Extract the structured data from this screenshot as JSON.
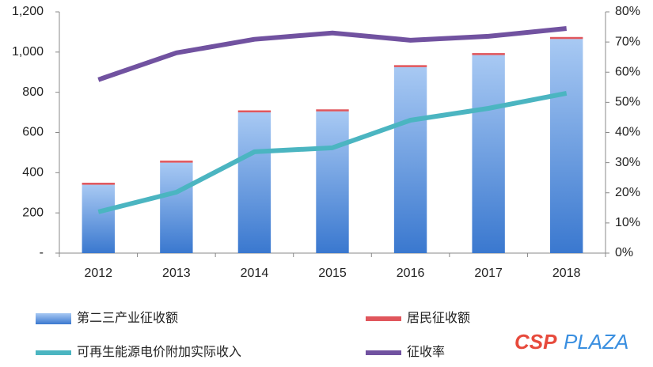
{
  "chart_data": {
    "type": "combo",
    "categories": [
      "2012",
      "2013",
      "2014",
      "2015",
      "2016",
      "2017",
      "2018"
    ],
    "series": [
      {
        "name": "第二三产业征收额",
        "type": "bar",
        "stack": true,
        "color": "#5b93dc",
        "values": [
          340,
          450,
          700,
          705,
          925,
          985,
          1065
        ]
      },
      {
        "name": "居民征收额",
        "type": "bar",
        "stack": true,
        "color": "#e0565c",
        "values": [
          10,
          10,
          10,
          10,
          10,
          10,
          10
        ]
      },
      {
        "name": "可再生能源电价附加实际收入",
        "type": "line",
        "color": "#4bb5c1",
        "values": [
          205,
          303,
          504,
          524,
          661,
          720,
          795
        ]
      },
      {
        "name": "征收率",
        "type": "line",
        "axis": "y2",
        "color": "#7152a0",
        "values": [
          57.5,
          66.4,
          70.9,
          73,
          70.6,
          71.9,
          74.5
        ]
      }
    ],
    "ylim": [
      0,
      1200
    ],
    "yticks": [
      {
        "value": 0,
        "label": "-"
      },
      200,
      400,
      600,
      800,
      {
        "value": 1000,
        "label": "1,000"
      },
      {
        "value": 1200,
        "label": "1,200"
      }
    ],
    "y2lim": [
      0,
      80
    ],
    "y2ticks": [
      {
        "value": 0,
        "label": "0%"
      },
      {
        "value": 10,
        "label": "10%"
      },
      {
        "value": 20,
        "label": "20%"
      },
      {
        "value": 30,
        "label": "30%"
      },
      {
        "value": 40,
        "label": "40%"
      },
      {
        "value": 50,
        "label": "50%"
      },
      {
        "value": 60,
        "label": "60%"
      },
      {
        "value": 70,
        "label": "70%"
      },
      {
        "value": 80,
        "label": "80%"
      }
    ],
    "grid": false,
    "legend": "bottom"
  },
  "watermark": {
    "first": "CSP",
    "second": "PLAZA"
  }
}
